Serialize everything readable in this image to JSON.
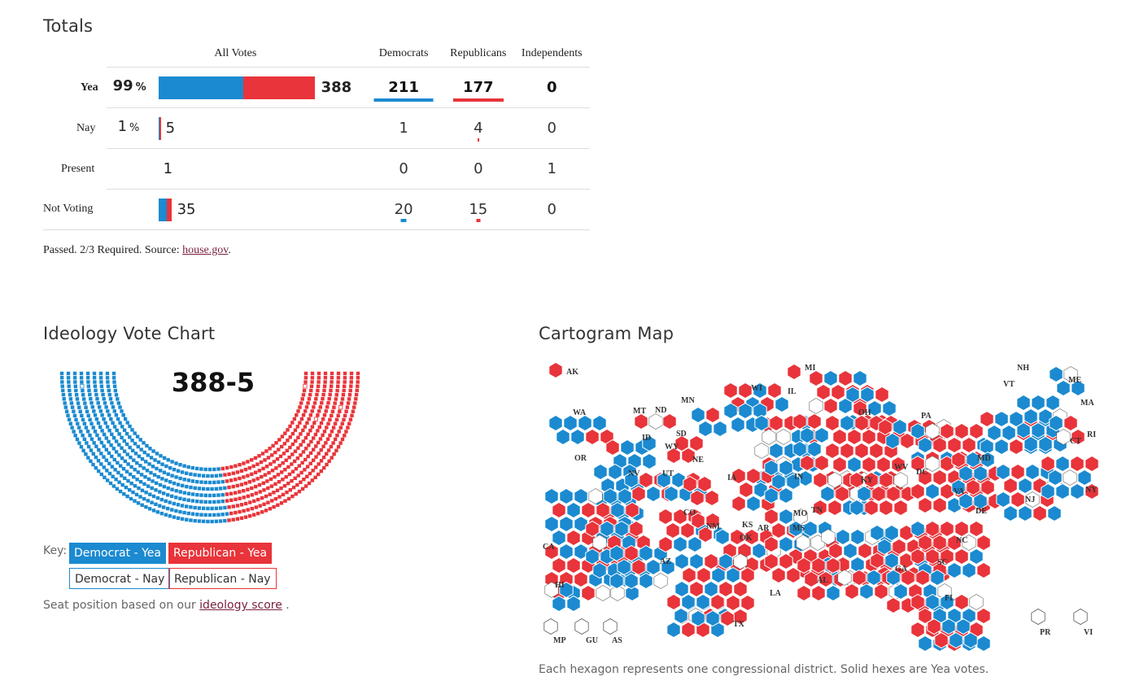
{
  "totals": {
    "title": "Totals",
    "headers": {
      "all_votes": "All Votes",
      "democrats": "Democrats",
      "republicans": "Republicans",
      "independents": "Independents"
    },
    "rows": [
      {
        "label": "Yea",
        "pct": "99",
        "pct_sign": "%",
        "count": "388",
        "dem": "211",
        "rep": "177",
        "ind": "0"
      },
      {
        "label": "Nay",
        "pct": "1",
        "pct_sign": "%",
        "count": "5",
        "dem": "1",
        "rep": "4",
        "ind": "0"
      },
      {
        "label": "Present",
        "pct": "",
        "pct_sign": "",
        "count": "1",
        "dem": "0",
        "rep": "0",
        "ind": "1"
      },
      {
        "label": "Not Voting",
        "pct": "",
        "pct_sign": "",
        "count": "35",
        "dem": "20",
        "rep": "15",
        "ind": "0"
      }
    ],
    "footnote_text": "Passed. 2/3 Required. Source: ",
    "footnote_link": "house.gov",
    "footnote_end": "."
  },
  "ideology": {
    "title": "Ideology Vote Chart",
    "score": "388-5",
    "key_label": "Key:",
    "key": {
      "dem_yea": "Democrat - Yea",
      "rep_yea": "Republican - Yea",
      "dem_nay": "Democrat - Nay",
      "rep_nay": "Republican - Nay"
    },
    "note_text": "Seat position based on our ",
    "note_link": "ideology score",
    "note_end": " ."
  },
  "cartogram": {
    "title": "Cartogram Map",
    "note": "Each hexagon represents one congressional district. Solid hexes are Yea votes.",
    "state_labels": [
      "AK",
      "MI",
      "WI",
      "NH",
      "VT",
      "ME",
      "MA",
      "WA",
      "MT",
      "ND",
      "MN",
      "OH",
      "PA",
      "IL",
      "RI",
      "ID",
      "SD",
      "WY",
      "CT",
      "OR",
      "NE",
      "NV",
      "UT",
      "IA",
      "WV",
      "DC",
      "MD",
      "IN",
      "KY",
      "VA",
      "NJ",
      "NY",
      "CO",
      "DE",
      "MO",
      "TN",
      "KS",
      "CA",
      "NM",
      "OK",
      "AR",
      "MS",
      "NC",
      "AZ",
      "SC",
      "GA",
      "HI",
      "AL",
      "LA",
      "FL",
      "TX",
      "PR",
      "VI",
      "MP",
      "GU",
      "AS"
    ]
  },
  "colors": {
    "dem": "#1b8ad0",
    "rep": "#e8343a",
    "grid": "#dddddd"
  },
  "chart_data": [
    {
      "type": "bar",
      "title": "Totals",
      "categories": [
        "Yea",
        "Nay",
        "Present",
        "Not Voting"
      ],
      "series": [
        {
          "name": "Democrats",
          "values": [
            211,
            1,
            0,
            20
          ]
        },
        {
          "name": "Republicans",
          "values": [
            177,
            4,
            0,
            15
          ]
        },
        {
          "name": "Independents",
          "values": [
            0,
            0,
            1,
            0
          ]
        }
      ],
      "totals": [
        388,
        5,
        1,
        35
      ],
      "percent": [
        99,
        1,
        null,
        null
      ]
    },
    {
      "type": "scatter",
      "title": "Ideology Vote Chart",
      "subtitle": "388-5",
      "counts": {
        "dem_yea": 211,
        "rep_yea": 177,
        "dem_nay": 1,
        "rep_nay": 4
      }
    }
  ]
}
